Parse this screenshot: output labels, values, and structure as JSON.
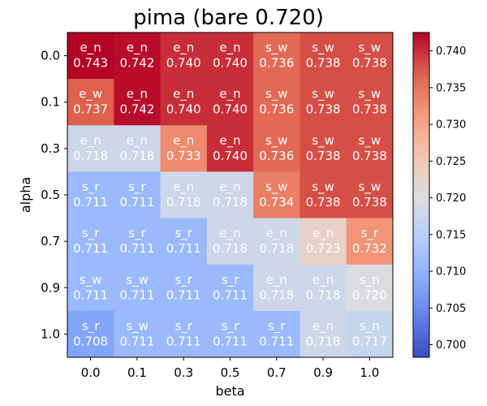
{
  "chart_data": {
    "type": "heatmap",
    "title": "pima (bare 0.720)",
    "xlabel": "beta",
    "ylabel": "alpha",
    "x_categories": [
      "0.0",
      "0.1",
      "0.3",
      "0.5",
      "0.7",
      "0.9",
      "1.0"
    ],
    "y_categories": [
      "0.0",
      "0.1",
      "0.3",
      "0.5",
      "0.7",
      "0.9",
      "1.0"
    ],
    "values": [
      [
        0.743,
        0.742,
        0.74,
        0.74,
        0.736,
        0.738,
        0.738
      ],
      [
        0.737,
        0.742,
        0.74,
        0.74,
        0.736,
        0.738,
        0.738
      ],
      [
        0.718,
        0.718,
        0.733,
        0.74,
        0.736,
        0.738,
        0.738
      ],
      [
        0.711,
        0.711,
        0.718,
        0.718,
        0.734,
        0.738,
        0.738
      ],
      [
        0.711,
        0.711,
        0.711,
        0.718,
        0.718,
        0.723,
        0.732
      ],
      [
        0.711,
        0.711,
        0.711,
        0.711,
        0.718,
        0.718,
        0.72
      ],
      [
        0.708,
        0.711,
        0.711,
        0.711,
        0.711,
        0.718,
        0.717
      ]
    ],
    "value_labels": [
      [
        "0.743",
        "0.742",
        "0.740",
        "0.740",
        "0.736",
        "0.738",
        "0.738"
      ],
      [
        "0.737",
        "0.742",
        "0.740",
        "0.740",
        "0.736",
        "0.738",
        "0.738"
      ],
      [
        "0.718",
        "0.718",
        "0.733",
        "0.740",
        "0.736",
        "0.738",
        "0.738"
      ],
      [
        "0.711",
        "0.711",
        "0.718",
        "0.718",
        "0.734",
        "0.738",
        "0.738"
      ],
      [
        "0.711",
        "0.711",
        "0.711",
        "0.718",
        "0.718",
        "0.723",
        "0.732"
      ],
      [
        "0.711",
        "0.711",
        "0.711",
        "0.711",
        "0.718",
        "0.718",
        "0.720"
      ],
      [
        "0.708",
        "0.711",
        "0.711",
        "0.711",
        "0.711",
        "0.718",
        "0.717"
      ]
    ],
    "cell_tags": [
      [
        "e_n",
        "e_n",
        "e_n",
        "e_n",
        "s_w",
        "s_w",
        "s_w"
      ],
      [
        "e_w",
        "e_n",
        "e_n",
        "e_n",
        "s_w",
        "s_w",
        "s_w"
      ],
      [
        "e_n",
        "e_n",
        "e_n",
        "e_n",
        "s_w",
        "s_w",
        "s_w"
      ],
      [
        "s_r",
        "s_r",
        "e_n",
        "e_n",
        "s_w",
        "s_w",
        "s_w"
      ],
      [
        "s_r",
        "s_r",
        "s_r",
        "e_n",
        "e_n",
        "e_n",
        "s_r"
      ],
      [
        "s_w",
        "s_w",
        "s_r",
        "s_r",
        "e_n",
        "e_n",
        "s_n"
      ],
      [
        "s_r",
        "s_w",
        "s_r",
        "s_r",
        "s_r",
        "e_n",
        "s_n"
      ]
    ],
    "colormap": "coolwarm",
    "colorbar": {
      "range": [
        0.6983,
        0.7425
      ],
      "ticks": [
        "0.700",
        "0.705",
        "0.710",
        "0.715",
        "0.720",
        "0.725",
        "0.730",
        "0.735",
        "0.740"
      ],
      "tick_values": [
        0.7,
        0.705,
        0.71,
        0.715,
        0.72,
        0.725,
        0.73,
        0.735,
        0.74
      ]
    },
    "annotation_color": "#ffffff",
    "grid": false
  }
}
